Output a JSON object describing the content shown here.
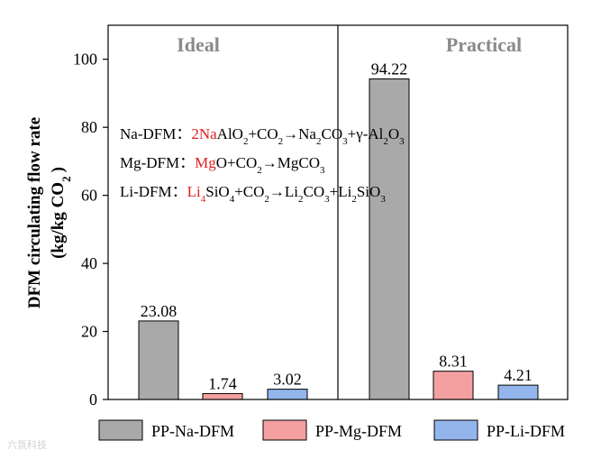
{
  "chart_data": {
    "type": "bar",
    "ylabel_line1": "DFM circulating flow rate",
    "ylabel_line2_pre": "(kg/kg CO",
    "ylabel_line2_sub": "2",
    "ylabel_line2_post": ")",
    "ylim": [
      0,
      110
    ],
    "yticks": [
      0,
      20,
      40,
      60,
      80,
      100
    ],
    "panels": [
      {
        "name": "Ideal",
        "values": [
          23.08,
          1.74,
          3.02
        ],
        "labels": [
          "23.08",
          "1.74",
          "3.02"
        ]
      },
      {
        "name": "Practical",
        "values": [
          94.22,
          8.31,
          4.21
        ],
        "labels": [
          "94.22",
          "8.31",
          "4.21"
        ]
      }
    ],
    "series": [
      {
        "name": "PP-Na-DFM",
        "color": "#a9a9a9"
      },
      {
        "name": "PP-Mg-DFM",
        "color": "#f5a0a0"
      },
      {
        "name": "PP-Li-DFM",
        "color": "#93b5ec"
      }
    ],
    "panel_title_color": "#8a8a8a",
    "highlight_color": "#e02020",
    "reactions": [
      {
        "parts": [
          [
            "Na-DFM：",
            "n"
          ],
          [
            "2Na",
            "r"
          ],
          [
            "AlO",
            "n"
          ],
          [
            "2",
            "s"
          ],
          [
            "+CO",
            "n"
          ],
          [
            "2",
            "s"
          ],
          [
            "→Na",
            "n"
          ],
          [
            "2",
            "s"
          ],
          [
            "CO",
            "n"
          ],
          [
            "3",
            "s"
          ],
          [
            "+γ-Al",
            "n"
          ],
          [
            "2",
            "s"
          ],
          [
            "O",
            "n"
          ],
          [
            "3",
            "s"
          ]
        ]
      },
      {
        "parts": [
          [
            "Mg-DFM：",
            "n"
          ],
          [
            "Mg",
            "r"
          ],
          [
            "O+CO",
            "n"
          ],
          [
            "2",
            "s"
          ],
          [
            "→MgCO",
            "n"
          ],
          [
            "3",
            "s"
          ]
        ]
      },
      {
        "parts": [
          [
            "Li-DFM：",
            "n"
          ],
          [
            "Li",
            "r"
          ],
          [
            "4",
            "rs"
          ],
          [
            "SiO",
            "n"
          ],
          [
            "4",
            "s"
          ],
          [
            "+CO",
            "n"
          ],
          [
            "2",
            "s"
          ],
          [
            "→Li",
            "n"
          ],
          [
            "2",
            "s"
          ],
          [
            "CO",
            "n"
          ],
          [
            "3",
            "s"
          ],
          [
            "+Li",
            "n"
          ],
          [
            "2",
            "s"
          ],
          [
            "SiO",
            "n"
          ],
          [
            "3",
            "s"
          ]
        ]
      }
    ]
  },
  "watermark": "六氛科技"
}
